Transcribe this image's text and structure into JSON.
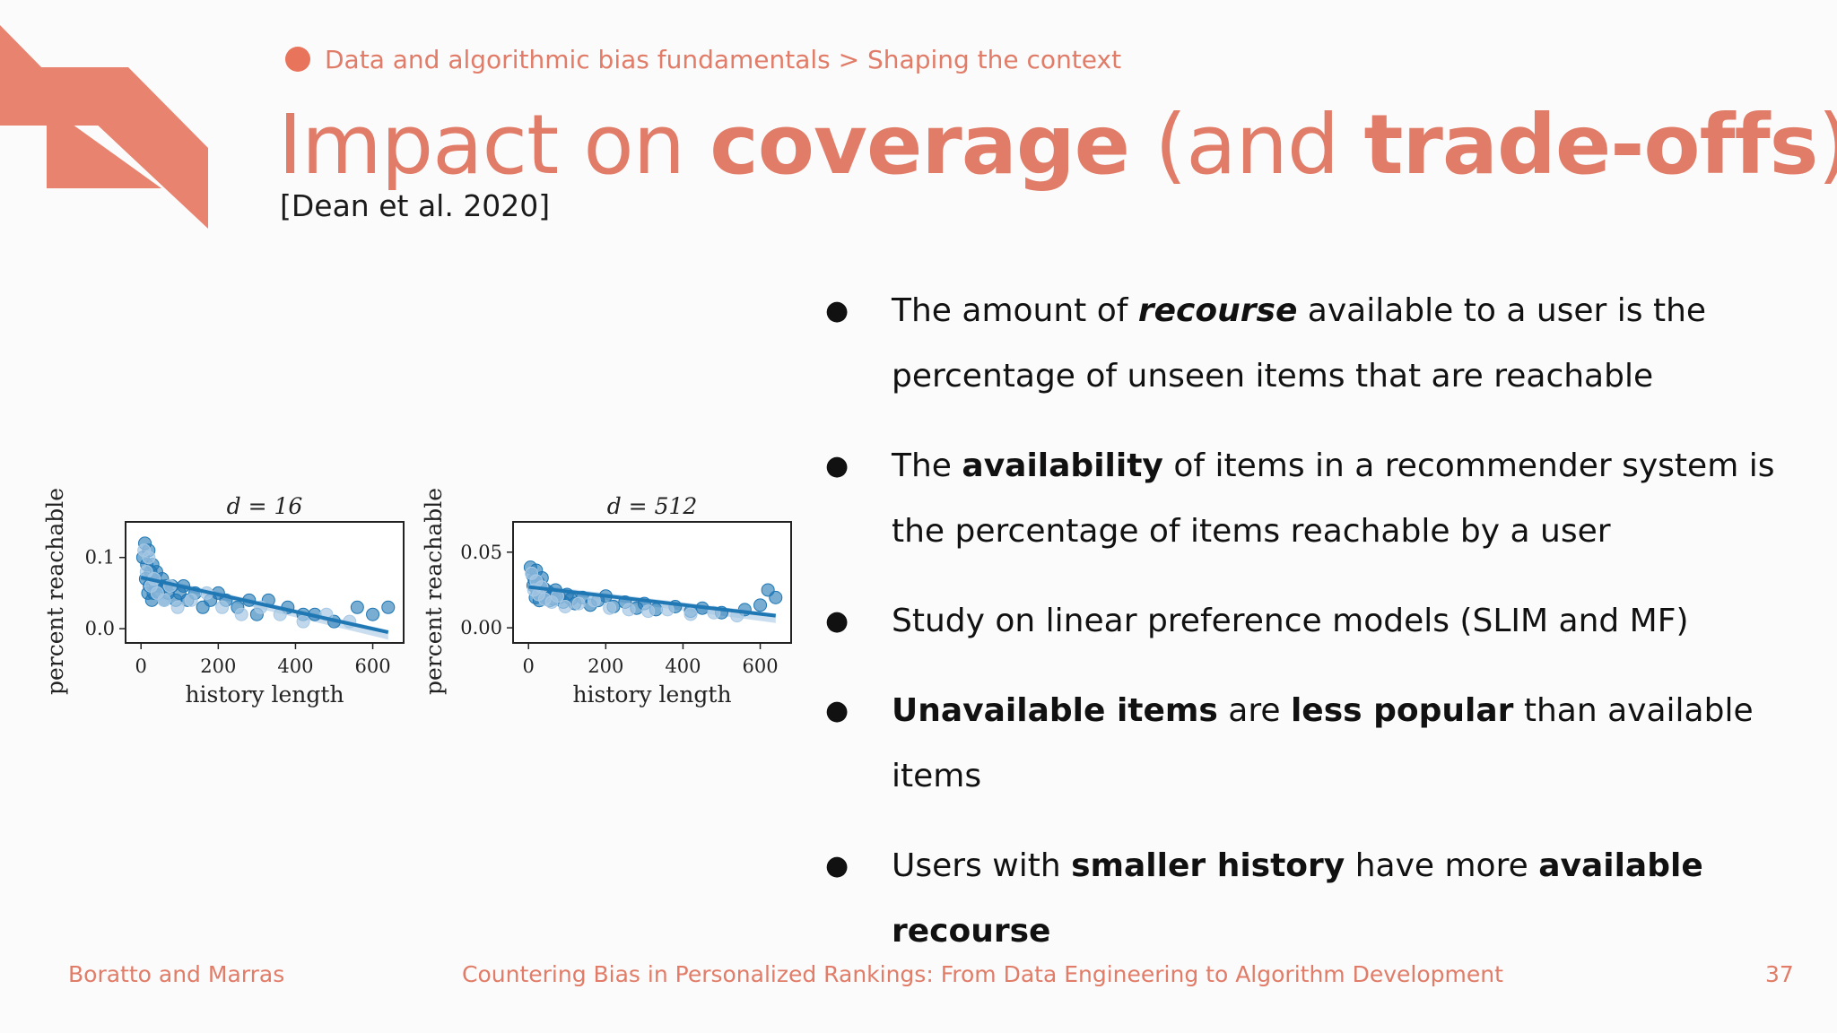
{
  "breadcrumb": {
    "text": "Data and algorithmic bias fundamentals > Shaping the context"
  },
  "title": {
    "part1": "Impact on ",
    "part2": "coverage",
    "part3": " (and ",
    "part4": "trade-offs",
    "part5": ")"
  },
  "citation": "[Dean et al. 2020]",
  "bullets": [
    {
      "t1": "The amount of ",
      "t2": "recourse",
      "t3": " available to a user is the percentage of unseen items that are reachable"
    },
    {
      "t1": "The ",
      "t2": "availability",
      "t3": " of items in a recommender system is the percentage of items reachable by a user"
    },
    {
      "t1": "Study on linear preference models (SLIM and MF)"
    },
    {
      "t1": "Unavailable items",
      "t2": " are ",
      "t3": "less popular",
      "t4": " than available items"
    },
    {
      "t1": "Users with ",
      "t2": "smaller history",
      "t3": " have more ",
      "t4": "available recourse"
    }
  ],
  "footer": {
    "authors": "Boratto and Marras",
    "talk_title": "Countering Bias in Personalized Rankings: From Data Engineering to Algorithm Development",
    "page_number": "37"
  },
  "colors": {
    "accent": "#e07c68",
    "corner": "#e8836f",
    "series": "#1f77b4",
    "series_light": "#a6c8e4"
  },
  "chart_data": [
    {
      "type": "scatter",
      "title": "d = 16",
      "xlabel": "history length",
      "ylabel": "percent reachable",
      "xlim": [
        -40,
        680
      ],
      "ylim": [
        -0.02,
        0.15
      ],
      "xticks": [
        "0",
        "200",
        "400",
        "600"
      ],
      "yticks": [
        "0.0",
        "0.1"
      ],
      "trend": {
        "x": [
          0,
          640
        ],
        "y": [
          0.072,
          -0.005
        ]
      },
      "series": [
        {
          "x": [
            5,
            10,
            12,
            15,
            18,
            20,
            22,
            25,
            28,
            30,
            32,
            35,
            38,
            40,
            45,
            50,
            55,
            60,
            65,
            70,
            80,
            90,
            100,
            110,
            120,
            140,
            160,
            180,
            200,
            220,
            250,
            280,
            300,
            330,
            380,
            420,
            450,
            500,
            560,
            600,
            640
          ],
          "y": [
            0.1,
            0.12,
            0.07,
            0.09,
            0.05,
            0.11,
            0.06,
            0.08,
            0.04,
            0.09,
            0.05,
            0.07,
            0.06,
            0.08,
            0.05,
            0.06,
            0.07,
            0.04,
            0.06,
            0.05,
            0.06,
            0.04,
            0.05,
            0.06,
            0.04,
            0.05,
            0.03,
            0.04,
            0.05,
            0.04,
            0.03,
            0.04,
            0.02,
            0.04,
            0.03,
            0.02,
            0.02,
            0.01,
            0.03,
            0.02,
            0.03
          ]
        },
        {
          "x": [
            8,
            14,
            20,
            26,
            34,
            42,
            60,
            75,
            95,
            130,
            170,
            210,
            260,
            310,
            360,
            420,
            480,
            540
          ],
          "y": [
            0.11,
            0.08,
            0.1,
            0.06,
            0.07,
            0.05,
            0.04,
            0.06,
            0.03,
            0.04,
            0.05,
            0.03,
            0.02,
            0.03,
            0.02,
            0.01,
            0.02,
            0.01
          ]
        }
      ]
    },
    {
      "type": "scatter",
      "title": "d = 512",
      "xlabel": "history length",
      "ylabel": "percent reachable",
      "xlim": [
        -40,
        680
      ],
      "ylim": [
        -0.01,
        0.07
      ],
      "xticks": [
        "0",
        "200",
        "400",
        "600"
      ],
      "yticks": [
        "0.00",
        "0.05"
      ],
      "trend": {
        "x": [
          0,
          640
        ],
        "y": [
          0.027,
          0.008
        ]
      },
      "series": [
        {
          "x": [
            5,
            10,
            12,
            15,
            18,
            20,
            22,
            25,
            28,
            30,
            32,
            35,
            38,
            40,
            45,
            50,
            55,
            60,
            65,
            70,
            80,
            90,
            100,
            110,
            120,
            140,
            160,
            180,
            200,
            220,
            250,
            280,
            300,
            330,
            380,
            420,
            450,
            500,
            560,
            600,
            620,
            640
          ],
          "y": [
            0.04,
            0.035,
            0.028,
            0.032,
            0.02,
            0.038,
            0.025,
            0.03,
            0.018,
            0.027,
            0.022,
            0.033,
            0.02,
            0.026,
            0.021,
            0.024,
            0.018,
            0.022,
            0.019,
            0.025,
            0.02,
            0.017,
            0.022,
            0.019,
            0.016,
            0.02,
            0.015,
            0.018,
            0.021,
            0.014,
            0.017,
            0.013,
            0.016,
            0.012,
            0.014,
            0.011,
            0.013,
            0.01,
            0.012,
            0.015,
            0.025,
            0.02
          ]
        },
        {
          "x": [
            8,
            14,
            20,
            26,
            34,
            42,
            60,
            75,
            95,
            130,
            170,
            210,
            260,
            310,
            360,
            420,
            480,
            540
          ],
          "y": [
            0.036,
            0.025,
            0.031,
            0.022,
            0.027,
            0.019,
            0.017,
            0.021,
            0.014,
            0.016,
            0.018,
            0.013,
            0.012,
            0.011,
            0.012,
            0.009,
            0.01,
            0.008
          ]
        }
      ]
    }
  ]
}
